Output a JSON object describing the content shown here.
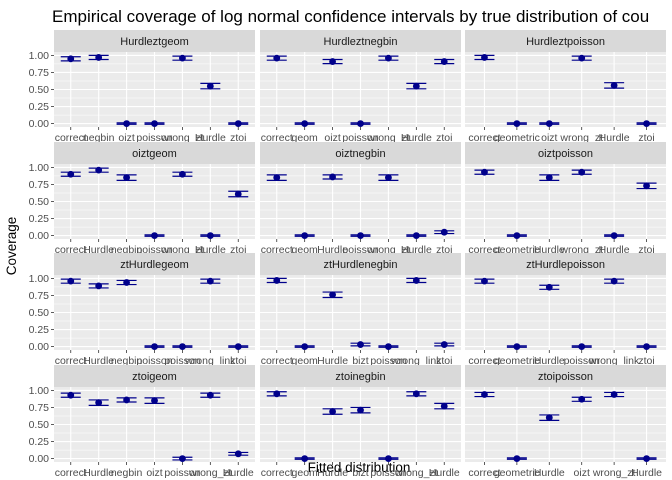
{
  "title": "Empirical coverage of log normal confidence intervals by true distribution of cou",
  "xlabel": "Fitted distribution",
  "ylabel": "Coverage",
  "colors": {
    "point": "#00008B",
    "panel_bg": "#EBEBEB",
    "strip_bg": "#D9D9D9",
    "grid": "#FFFFFF"
  },
  "chart_data": {
    "type": "scatter",
    "facets": "3 columns x 4 rows",
    "ylim": [
      -0.05,
      1.05
    ],
    "yticks": [
      0.0,
      0.25,
      0.5,
      0.75,
      1.0
    ],
    "ytick_labels": [
      "0.00",
      "0.25",
      "0.50",
      "0.75",
      "1.00"
    ],
    "grid": true,
    "panels": [
      {
        "name": "Hurdleztgeom",
        "categories": [
          "correct",
          "negbin",
          "oizt",
          "poisson",
          "wrong_zt",
          "Hurdle",
          "ztoi"
        ],
        "values": [
          0.95,
          0.97,
          0.0,
          0.0,
          0.96,
          0.55,
          0.0
        ],
        "err": [
          0.03,
          0.03,
          0.01,
          0.01,
          0.03,
          0.04,
          0.01
        ]
      },
      {
        "name": "Hurdleztnegbin",
        "categories": [
          "correct",
          "geom",
          "oizt",
          "poisson",
          "wrong_zt",
          "Hurdle",
          "ztoi"
        ],
        "values": [
          0.96,
          0.0,
          0.91,
          0.0,
          0.96,
          0.55,
          0.91
        ],
        "err": [
          0.03,
          0.01,
          0.03,
          0.01,
          0.03,
          0.04,
          0.03
        ]
      },
      {
        "name": "Hurdleztpoisson",
        "categories": [
          "correct",
          "geometric",
          "oizt",
          "wrong_zt",
          "Hurdle",
          "ztoi"
        ],
        "values": [
          0.97,
          0.0,
          0.0,
          0.96,
          0.56,
          0.0
        ],
        "err": [
          0.03,
          0.01,
          0.01,
          0.03,
          0.04,
          0.01
        ]
      },
      {
        "name": "oiztgeom",
        "categories": [
          "correct",
          "Hurdle",
          "negbin",
          "poisson",
          "wrong_zt",
          "Hurdle",
          "ztoi"
        ],
        "values": [
          0.9,
          0.96,
          0.85,
          0.0,
          0.9,
          0.0,
          0.61
        ],
        "err": [
          0.03,
          0.03,
          0.04,
          0.01,
          0.03,
          0.01,
          0.04
        ]
      },
      {
        "name": "oiztnegbin",
        "categories": [
          "correct",
          "geom",
          "Hurdle",
          "poisson",
          "wrong_zt",
          "Hurdle",
          "ztoi"
        ],
        "values": [
          0.85,
          0.0,
          0.86,
          0.0,
          0.85,
          0.0,
          0.05
        ],
        "err": [
          0.04,
          0.01,
          0.03,
          0.01,
          0.04,
          0.01,
          0.02
        ]
      },
      {
        "name": "oiztpoisson",
        "categories": [
          "correct",
          "geometric",
          "Hurdle",
          "wrong_zt",
          "Hurdle",
          "ztoi"
        ],
        "values": [
          0.93,
          0.0,
          0.85,
          0.93,
          0.0,
          0.73
        ],
        "err": [
          0.03,
          0.01,
          0.04,
          0.03,
          0.01,
          0.04
        ]
      },
      {
        "name": "ztHurdlegeom",
        "categories": [
          "correct",
          "Hurdle",
          "negbin",
          "poisson",
          "poisson",
          "wrong_link",
          "ztoi"
        ],
        "values": [
          0.96,
          0.89,
          0.94,
          0.0,
          0.0,
          0.96,
          0.0
        ],
        "err": [
          0.03,
          0.03,
          0.03,
          0.01,
          0.01,
          0.03,
          0.01
        ]
      },
      {
        "name": "ztHurdlenegbin",
        "categories": [
          "correct",
          "geom",
          "Hurdle",
          "bizt",
          "poisson",
          "wrong_link",
          "ztoi"
        ],
        "values": [
          0.97,
          0.0,
          0.76,
          0.03,
          0.0,
          0.97,
          0.03
        ],
        "err": [
          0.03,
          0.01,
          0.04,
          0.02,
          0.01,
          0.03,
          0.02
        ]
      },
      {
        "name": "ztHurdlepoisson",
        "categories": [
          "correct",
          "geometric",
          "Hurdle",
          "poisson",
          "wrong_link",
          "ztoi"
        ],
        "values": [
          0.96,
          0.0,
          0.87,
          0.0,
          0.96,
          0.0
        ],
        "err": [
          0.03,
          0.01,
          0.03,
          0.01,
          0.03,
          0.01
        ]
      },
      {
        "name": "ztoigeom",
        "categories": [
          "correct",
          "Hurdle",
          "negbin",
          "oizt",
          "poisson",
          "wrong_zt",
          "Hurdle"
        ],
        "values": [
          0.93,
          0.82,
          0.86,
          0.85,
          0.0,
          0.93,
          0.07
        ],
        "err": [
          0.03,
          0.04,
          0.03,
          0.04,
          0.02,
          0.03,
          0.02
        ]
      },
      {
        "name": "ztoinegbin",
        "categories": [
          "correct",
          "geom",
          "Hurdle",
          "bizt",
          "poisson",
          "wrong_zt",
          "Hurdle"
        ],
        "values": [
          0.95,
          0.0,
          0.69,
          0.71,
          0.0,
          0.95,
          0.77
        ],
        "err": [
          0.03,
          0.01,
          0.04,
          0.04,
          0.01,
          0.03,
          0.04
        ]
      },
      {
        "name": "ztoipoisson",
        "categories": [
          "correct",
          "geometric",
          "Hurdle",
          "oizt",
          "wrong_zt",
          "Hurdle"
        ],
        "values": [
          0.94,
          0.0,
          0.6,
          0.87,
          0.94,
          0.0
        ],
        "err": [
          0.03,
          0.01,
          0.04,
          0.03,
          0.03,
          0.01
        ]
      }
    ]
  }
}
